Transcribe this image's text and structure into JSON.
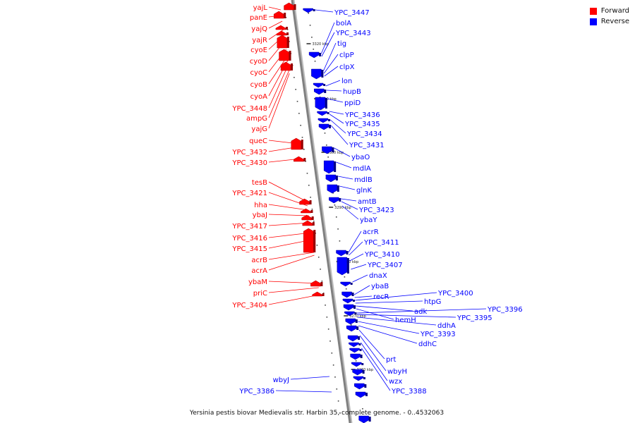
{
  "caption": "Yersinia pestis biovar Medievalis str. Harbin 35, complete genome. - 0..4532063",
  "legend": [
    {
      "label": "Forward",
      "color": "#ff0000"
    },
    {
      "label": "Reverse",
      "color": "#0000ff"
    }
  ],
  "colors": {
    "forward": "#ff0000",
    "reverse": "#0000ff",
    "axis": "#808080"
  },
  "scale_labels": [
    "3320 kbp",
    "3310 kbp",
    "3300 kbp",
    "3290 kbp",
    "3280 kbp",
    "3270 kbp",
    "3260 kbp"
  ],
  "forward_genes": [
    "yajL",
    "panE",
    "yajQ",
    "yajR",
    "cyoE",
    "cyoD",
    "cyoC",
    "cyoB",
    "cyoA",
    "YPC_3448",
    "ampG",
    "yajG",
    "queC",
    "YPC_3432",
    "YPC_3430",
    "tesB",
    "YPC_3421",
    "hha",
    "ybaJ",
    "YPC_3417",
    "YPC_3416",
    "YPC_3415",
    "acrB",
    "acrA",
    "ybaM",
    "priC",
    "YPC_3404"
  ],
  "reverse_genes": [
    "YPC_3447",
    "bolA",
    "YPC_3443",
    "tig",
    "clpP",
    "clpX",
    "lon",
    "hupB",
    "ppiD",
    "YPC_3436",
    "YPC_3435",
    "YPC_3434",
    "YPC_3431",
    "ybaO",
    "mdlA",
    "mdlB",
    "glnK",
    "amtB",
    "YPC_3423",
    "ybaY",
    "acrR",
    "YPC_3411",
    "YPC_3410",
    "YPC_3407",
    "dnaX",
    "ybaB",
    "recR",
    "YPC_3400",
    "htpG",
    "adk",
    "hemH",
    "YPC_3396",
    "YPC_3395",
    "ddhA",
    "YPC_3393",
    "ddhC",
    "prt",
    "wbyH",
    "wzx",
    "YPC_3388",
    "wbyJ",
    "YPC_3386"
  ]
}
